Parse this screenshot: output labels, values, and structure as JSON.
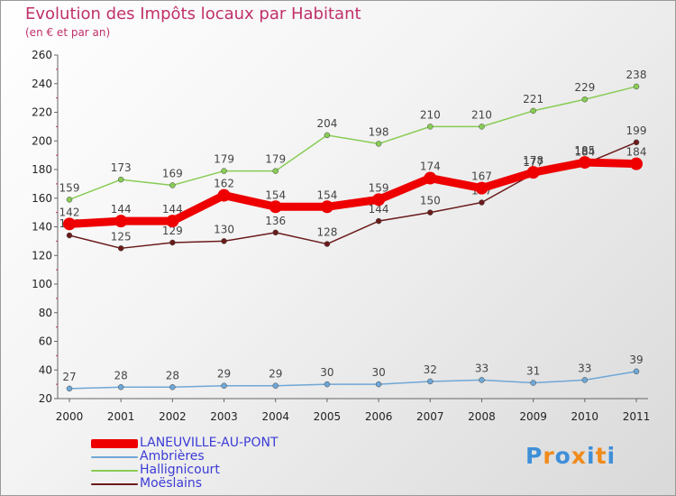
{
  "header": {
    "title": "Evolution des Impôts locaux par Habitant",
    "subtitle": "(en € et par an)"
  },
  "chart_data": {
    "type": "line",
    "title": "Evolution des Impôts locaux par Habitant",
    "subtitle": "(en € et par an)",
    "x": [
      "2000",
      "2001",
      "2002",
      "2003",
      "2004",
      "2005",
      "2006",
      "2007",
      "2008",
      "2009",
      "2010",
      "2011"
    ],
    "ylim": [
      20,
      260
    ],
    "yticks": [
      "20",
      "40",
      "60",
      "80",
      "100",
      "120",
      "140",
      "160",
      "180",
      "200",
      "220",
      "240",
      "260"
    ],
    "grid": false,
    "legend_position": "bottom-left",
    "series": [
      {
        "name": "Moëslains",
        "color": "#6b1a1a",
        "values": [
          134,
          125,
          129,
          130,
          136,
          128,
          144,
          150,
          157,
          177,
          184,
          199
        ],
        "labels": [
          "134",
          "125",
          "129",
          "130",
          "136",
          "128",
          "144",
          "150",
          "157",
          "177",
          "184",
          "199"
        ]
      },
      {
        "name": "Hallignicourt",
        "color": "#88cc55",
        "values": [
          159,
          173,
          169,
          179,
          179,
          204,
          198,
          210,
          210,
          221,
          229,
          238
        ],
        "labels": [
          "159",
          "173",
          "169",
          "179",
          "179",
          "204",
          "198",
          "210",
          "210",
          "221",
          "229",
          "238"
        ]
      },
      {
        "name": "Ambrières",
        "color": "#6fa7d6",
        "values": [
          27,
          28,
          28,
          29,
          29,
          30,
          30,
          32,
          33,
          31,
          33,
          39
        ],
        "labels": [
          "27",
          "28",
          "28",
          "29",
          "29",
          "30",
          "30",
          "32",
          "33",
          "31",
          "33",
          "39"
        ]
      },
      {
        "name": "LANEUVILLE-AU-PONT",
        "color": "#ee0000",
        "values": [
          142,
          144,
          144,
          162,
          154,
          154,
          159,
          174,
          167,
          178,
          185,
          184
        ],
        "labels": [
          "142",
          "144",
          "144",
          "162",
          "154",
          "154",
          "159",
          "174",
          "167",
          "178",
          "185",
          "184"
        ]
      }
    ]
  },
  "legend": [
    {
      "label": "LANEUVILLE-AU-PONT",
      "color": "#ee0000"
    },
    {
      "label": "Ambrières",
      "color": "#6fa7d6"
    },
    {
      "label": "Hallignicourt",
      "color": "#88cc55"
    },
    {
      "label": "Moëslains",
      "color": "#6b1a1a"
    }
  ],
  "logo": {
    "text": "Proxiti",
    "letter_colors": [
      "#3f8fd8",
      "#f08a1a",
      "#3f8fd8",
      "#f08a1a",
      "#3f8fd8",
      "#f08a1a",
      "#3f8fd8"
    ]
  }
}
